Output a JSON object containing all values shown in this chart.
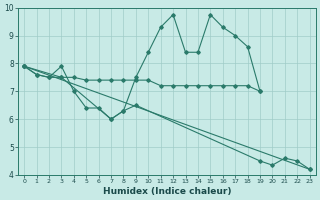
{
  "background_color": "#c8eae6",
  "grid_color": "#a0ccc8",
  "line_color": "#2a7a6a",
  "xlabel": "Humidex (Indice chaleur)",
  "xlim": [
    -0.5,
    23.5
  ],
  "ylim": [
    4,
    10
  ],
  "yticks": [
    4,
    5,
    6,
    7,
    8,
    9,
    10
  ],
  "xticks": [
    0,
    1,
    2,
    3,
    4,
    5,
    6,
    7,
    8,
    9,
    10,
    11,
    12,
    13,
    14,
    15,
    16,
    17,
    18,
    19,
    20,
    21,
    22,
    23
  ],
  "series": [
    {
      "x": [
        0,
        1,
        2,
        3,
        4,
        5,
        6,
        7,
        8,
        9,
        10,
        11,
        12,
        13,
        14,
        15,
        16,
        17,
        18,
        19
      ],
      "y": [
        7.9,
        7.6,
        7.5,
        7.9,
        7.0,
        6.4,
        6.4,
        6.0,
        6.3,
        7.5,
        8.4,
        9.3,
        9.75,
        8.4,
        8.4,
        9.75,
        9.3,
        9.0,
        8.6,
        7.0
      ]
    },
    {
      "x": [
        0,
        1,
        2,
        3,
        4,
        5,
        6,
        7,
        8,
        9,
        10,
        11,
        12,
        13,
        14,
        15,
        16,
        17,
        18,
        19
      ],
      "y": [
        7.9,
        7.6,
        7.5,
        7.5,
        7.5,
        7.4,
        7.4,
        7.4,
        7.4,
        7.4,
        7.4,
        7.2,
        7.2,
        7.2,
        7.2,
        7.2,
        7.2,
        7.2,
        7.2,
        7.0
      ]
    },
    {
      "x": [
        0,
        23
      ],
      "y": [
        7.9,
        4.2
      ]
    },
    {
      "x": [
        0,
        3,
        7,
        8,
        9,
        19,
        20,
        21,
        22,
        23
      ],
      "y": [
        7.9,
        7.5,
        6.0,
        6.3,
        6.5,
        4.5,
        4.35,
        4.6,
        4.5,
        4.2
      ]
    }
  ]
}
